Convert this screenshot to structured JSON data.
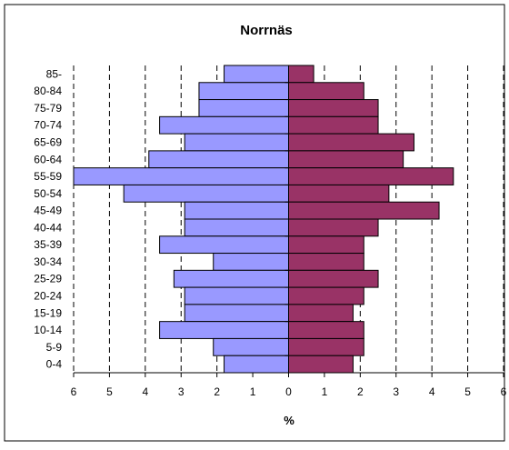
{
  "chart_data": {
    "type": "bar",
    "orientation": "horizontal",
    "layout": "population-pyramid",
    "title": "Norrnäs",
    "xlabel": "%",
    "ylabel": "",
    "xlim": [
      -6,
      6
    ],
    "x_ticks": [
      -6,
      -5,
      -4,
      -3,
      -2,
      -1,
      0,
      1,
      2,
      3,
      4,
      5,
      6
    ],
    "x_tick_labels": [
      "6",
      "5",
      "4",
      "3",
      "2",
      "1",
      "0",
      "1",
      "2",
      "3",
      "4",
      "5",
      "6"
    ],
    "grid": "vertical-dashed",
    "legend": "none",
    "categories": [
      "85-",
      "80-84",
      "75-79",
      "70-74",
      "65-69",
      "60-64",
      "55-59",
      "50-54",
      "45-49",
      "40-44",
      "35-39",
      "30-34",
      "25-29",
      "20-24",
      "15-19",
      "10-14",
      "5-9",
      "0-4"
    ],
    "series": [
      {
        "side": "left",
        "color": "#9999ff",
        "values": [
          1.8,
          2.5,
          2.5,
          3.6,
          2.9,
          3.9,
          6.0,
          4.6,
          2.9,
          2.9,
          3.6,
          2.1,
          3.2,
          2.9,
          2.9,
          3.6,
          2.1,
          1.8
        ]
      },
      {
        "side": "right",
        "color": "#993366",
        "values": [
          0.7,
          2.1,
          2.5,
          2.5,
          3.5,
          3.2,
          4.6,
          2.8,
          4.2,
          2.5,
          2.1,
          2.1,
          2.5,
          2.1,
          1.8,
          2.1,
          2.1,
          1.8
        ]
      }
    ]
  }
}
